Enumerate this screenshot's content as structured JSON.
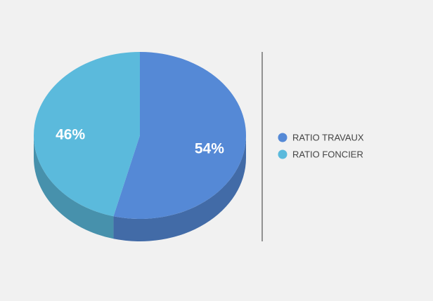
{
  "chart_data": {
    "type": "pie",
    "categories": [
      "RATIO TRAVAUX",
      "RATIO FONCIER"
    ],
    "values": [
      54,
      46
    ],
    "value_labels": [
      "54%",
      "46%"
    ],
    "colors": [
      "#5589d6",
      "#5bbadc"
    ],
    "legend": "right"
  }
}
